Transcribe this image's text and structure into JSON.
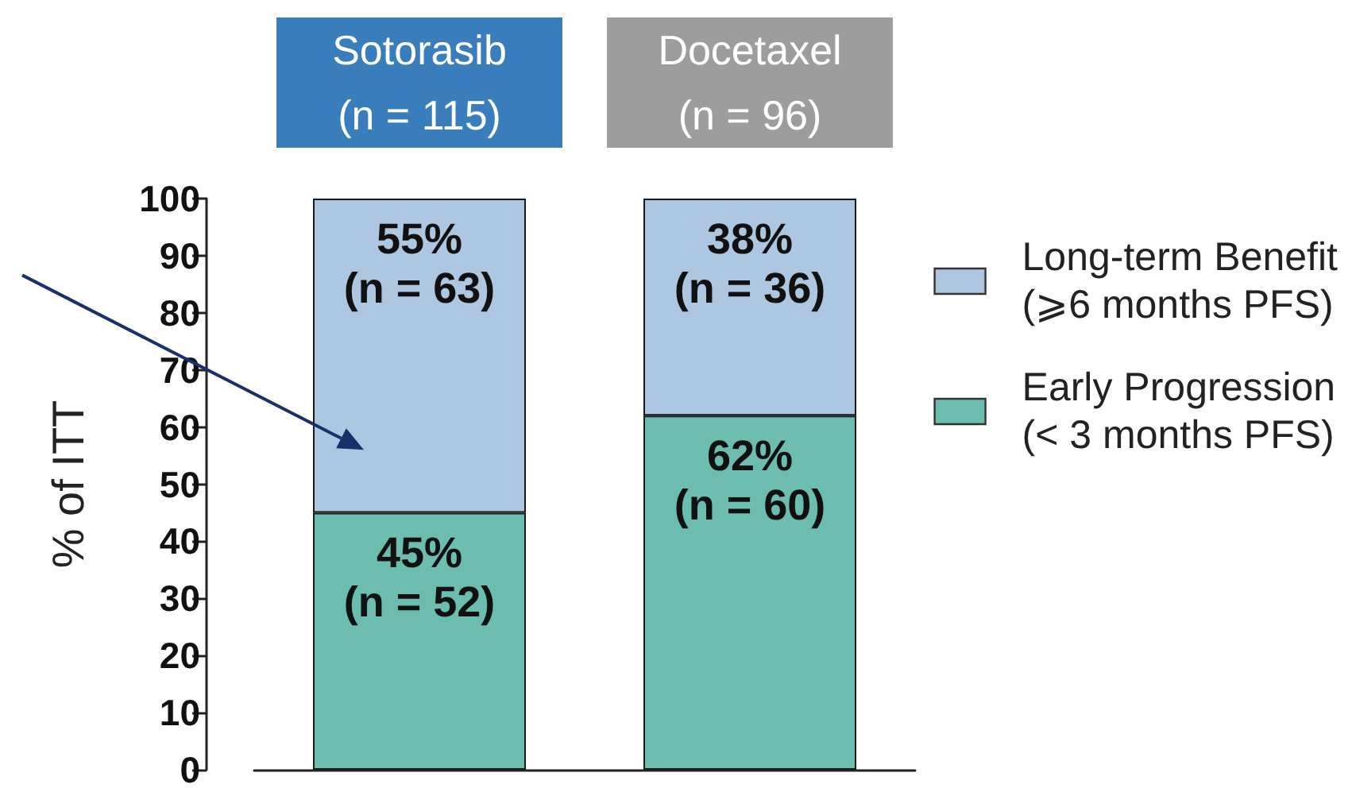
{
  "chart_data": {
    "type": "bar",
    "ylabel": "% of ITT",
    "categories": [
      "Sotorasib\n(n = 115)",
      "Docetaxel\n(n = 96)"
    ],
    "stacked": true,
    "series": [
      {
        "name": "Early Progression\n(< 3 months PFS)",
        "color": "#6cbcaf",
        "values": [
          45,
          62
        ],
        "value_labels": [
          "45%\n(n = 52)",
          "62%\n(n = 60)"
        ]
      },
      {
        "name": "Long-term Benefit\n(⩾6 months PFS)",
        "color": "#adc7e1",
        "values": [
          55,
          38
        ],
        "value_labels": [
          "55%\n(n = 63)",
          "38%\n(n = 36)"
        ]
      }
    ],
    "ylim": [
      0,
      100
    ],
    "yticks": [
      0,
      10,
      20,
      30,
      40,
      50,
      60,
      70,
      80,
      90,
      100
    ],
    "grid": false,
    "legend": "right"
  }
}
